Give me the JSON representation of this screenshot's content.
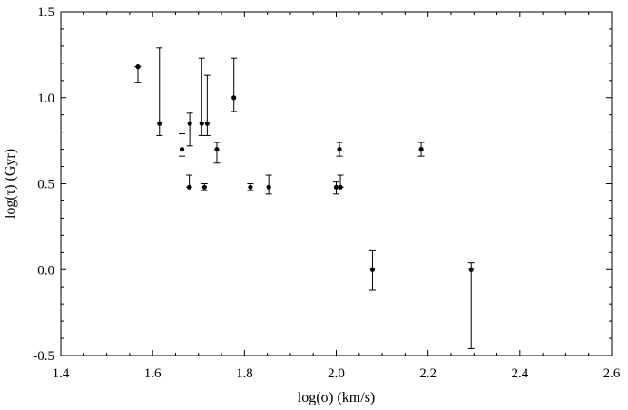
{
  "chart_data": {
    "type": "scatter",
    "xlabel": "log(σ) (km/s)",
    "ylabel": "log(τ) (Gyr)",
    "xlim": [
      1.4,
      2.6
    ],
    "ylim": [
      -0.5,
      1.5
    ],
    "x_ticks": [
      1.4,
      1.6,
      1.8,
      2.0,
      2.2,
      2.4,
      2.6
    ],
    "x_tick_labels": [
      "1.4",
      "1.6",
      "1.8",
      "2.0",
      "2.2",
      "2.4",
      "2.6"
    ],
    "y_ticks": [
      -0.5,
      0.0,
      0.5,
      1.0,
      1.5
    ],
    "y_tick_labels": [
      "-0.5",
      "0.0",
      "0.5",
      "1.0",
      "1.5"
    ],
    "grid": false,
    "series": [
      {
        "marker": "filled-circle",
        "color": "#000000",
        "points": [
          {
            "x": 1.568,
            "y": 1.18,
            "y_low": 1.09,
            "y_high": 1.18
          },
          {
            "x": 1.615,
            "y": 0.85,
            "y_low": 0.78,
            "y_high": 1.29
          },
          {
            "x": 1.664,
            "y": 0.7,
            "y_low": 0.66,
            "y_high": 0.79
          },
          {
            "x": 1.68,
            "y": 0.48,
            "y_low": 0.48,
            "y_high": 0.55
          },
          {
            "x": 1.681,
            "y": 0.85,
            "y_low": 0.72,
            "y_high": 0.91
          },
          {
            "x": 1.707,
            "y": 0.85,
            "y_low": 0.78,
            "y_high": 1.23
          },
          {
            "x": 1.713,
            "y": 0.48,
            "y_low": 0.46,
            "y_high": 0.5
          },
          {
            "x": 1.719,
            "y": 0.85,
            "y_low": 0.78,
            "y_high": 1.13
          },
          {
            "x": 1.74,
            "y": 0.7,
            "y_low": 0.62,
            "y_high": 0.74
          },
          {
            "x": 1.777,
            "y": 1.0,
            "y_low": 0.92,
            "y_high": 1.23
          },
          {
            "x": 1.813,
            "y": 0.48,
            "y_low": 0.46,
            "y_high": 0.5
          },
          {
            "x": 1.853,
            "y": 0.48,
            "y_low": 0.44,
            "y_high": 0.55
          },
          {
            "x": 2.0,
            "y": 0.48,
            "y_low": 0.44,
            "y_high": 0.51
          },
          {
            "x": 2.007,
            "y": 0.7,
            "y_low": 0.66,
            "y_high": 0.74
          },
          {
            "x": 2.009,
            "y": 0.48,
            "y_low": 0.48,
            "y_high": 0.55
          },
          {
            "x": 2.079,
            "y": 0.0,
            "y_low": -0.12,
            "y_high": 0.11
          },
          {
            "x": 2.185,
            "y": 0.7,
            "y_low": 0.66,
            "y_high": 0.74
          },
          {
            "x": 2.294,
            "y": 0.0,
            "y_low": -0.46,
            "y_high": 0.04
          }
        ]
      }
    ]
  }
}
